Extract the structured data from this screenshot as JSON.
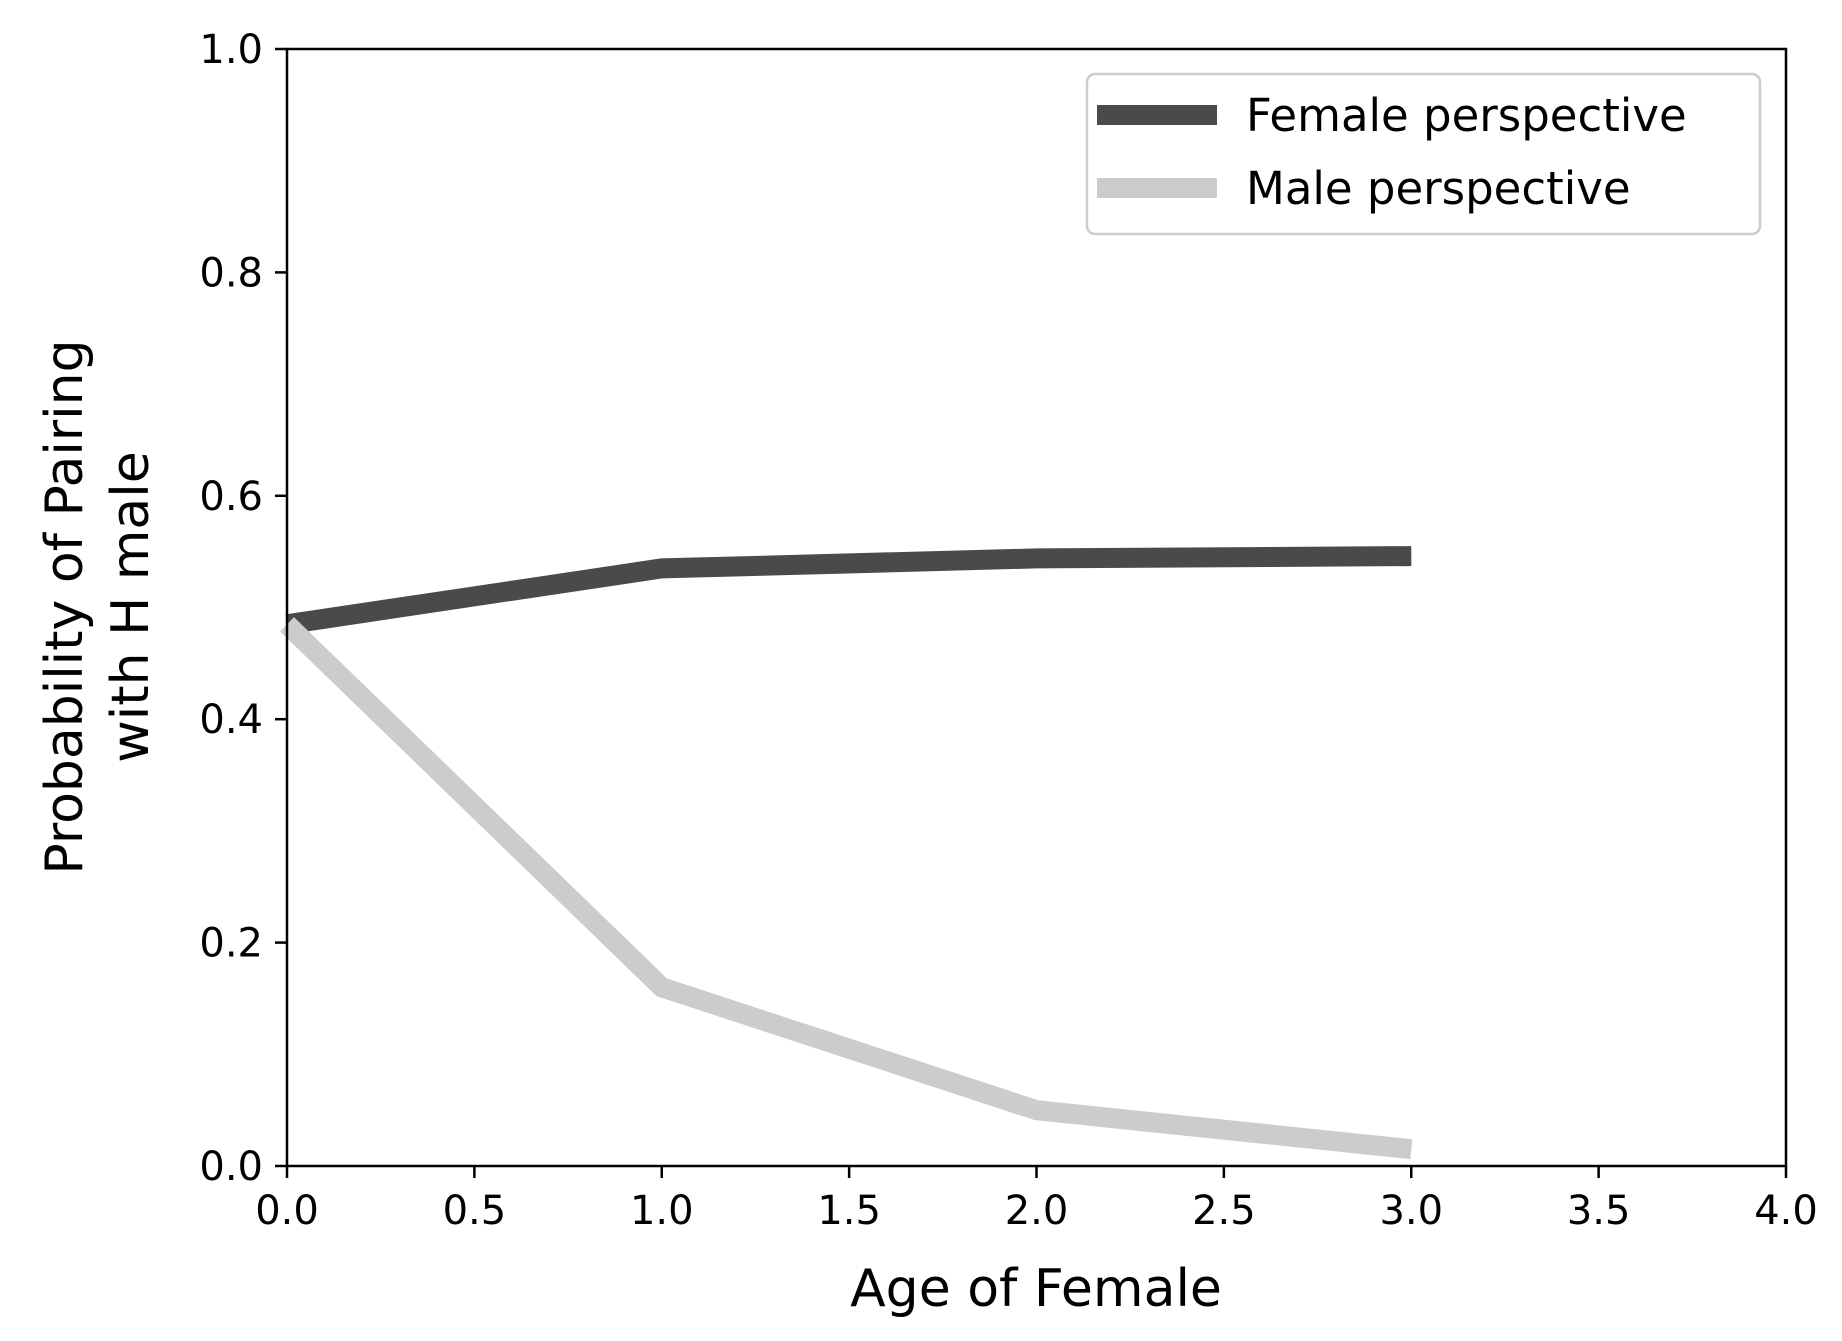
{
  "chart_data": {
    "type": "line",
    "title": "",
    "xlabel": "Age of Female",
    "ylabel_lines": [
      "Probability of Pairing",
      "with H male"
    ],
    "xlim": [
      0.0,
      4.0
    ],
    "ylim": [
      0.0,
      1.0
    ],
    "x_ticks": [
      "0.0",
      "0.5",
      "1.0",
      "1.5",
      "2.0",
      "2.5",
      "3.0",
      "3.5",
      "4.0"
    ],
    "y_ticks": [
      "0.0",
      "0.2",
      "0.4",
      "0.6",
      "0.8",
      "1.0"
    ],
    "grid": false,
    "legend_position": "top-right",
    "series": [
      {
        "name": "Female perspective",
        "color": "#4a4a4a",
        "x": [
          0,
          1,
          2,
          3
        ],
        "y": [
          0.485,
          0.535,
          0.544,
          0.546
        ]
      },
      {
        "name": "Male perspective",
        "color": "#cccccc",
        "x": [
          0,
          1,
          2,
          3
        ],
        "y": [
          0.485,
          0.16,
          0.05,
          0.015
        ]
      }
    ]
  }
}
